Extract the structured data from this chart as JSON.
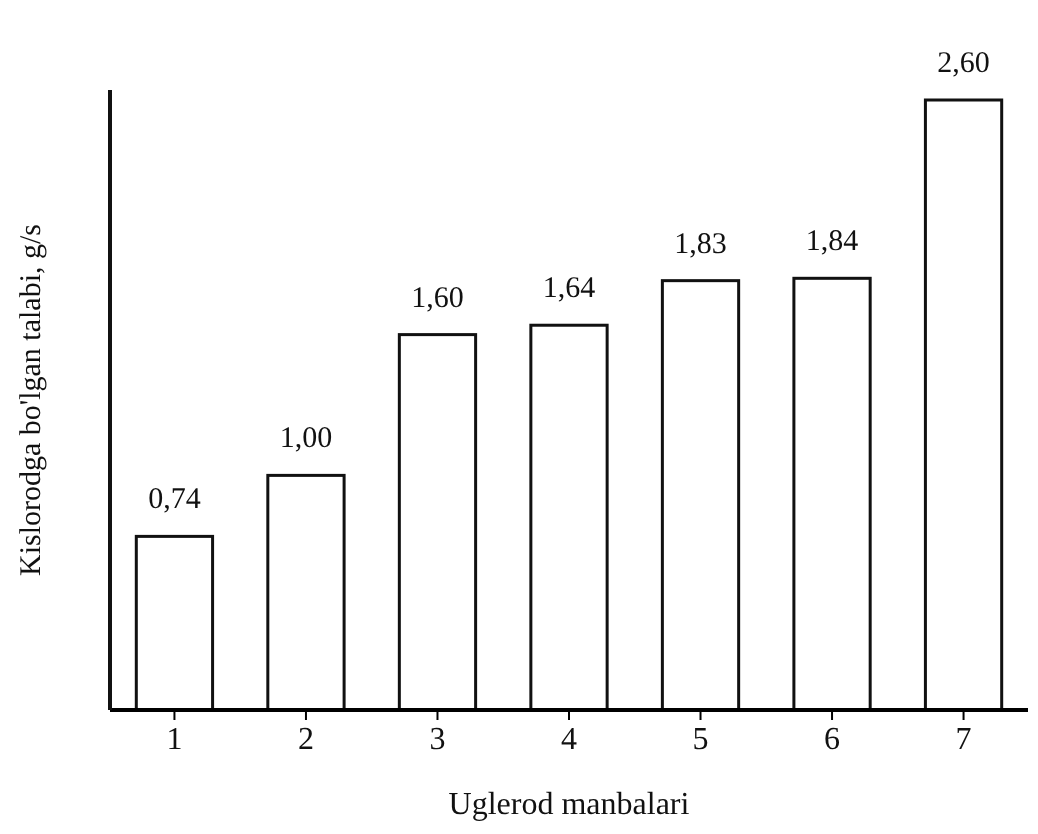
{
  "chart_data": {
    "type": "bar",
    "xlabel": "Uglerod manbalari",
    "ylabel": "Kislorodga bo'lgan talabi, g/s",
    "categories": [
      "1",
      "2",
      "3",
      "4",
      "5",
      "6",
      "7"
    ],
    "values": [
      0.74,
      1.0,
      1.6,
      1.64,
      1.83,
      1.84,
      2.6
    ],
    "value_labels": [
      "0,74",
      "1,00",
      "1,60",
      "1,64",
      "1,83",
      "1,84",
      "2,60"
    ],
    "color": "#ffffff"
  }
}
